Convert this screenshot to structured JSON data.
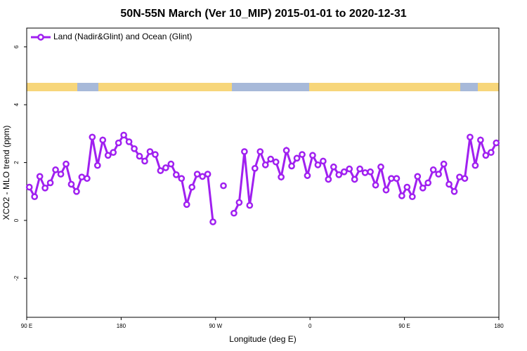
{
  "chart_data": {
    "type": "line",
    "title": "50N-55N March (Ver 10_MIP)   2015-01-01 to 2020-12-31",
    "x_label": "Longitude (deg E)",
    "y_label": "XCO2 - MLO trend (ppm)",
    "legend_position": "top-left",
    "xlim": [
      90,
      540
    ],
    "xticks": [
      {
        "value": 90,
        "label": "90 E"
      },
      {
        "value": 180,
        "label": "180"
      },
      {
        "value": 270,
        "label": "90 W"
      },
      {
        "value": 360,
        "label": "0"
      },
      {
        "value": 450,
        "label": "90 E"
      },
      {
        "value": 540,
        "label": "180"
      }
    ],
    "ylim": [
      -3.35,
      6.65
    ],
    "yticks": [
      -2,
      0,
      2,
      4,
      6
    ],
    "x": [
      92.5,
      97.5,
      102.5,
      107.5,
      112.5,
      117.5,
      122.5,
      127.5,
      132.5,
      137.5,
      142.5,
      147.5,
      152.5,
      157.5,
      162.5,
      167.5,
      172.5,
      177.5,
      182.5,
      187.5,
      192.5,
      197.5,
      202.5,
      207.5,
      212.5,
      217.5,
      222.5,
      227.5,
      232.5,
      237.5,
      242.5,
      247.5,
      252.5,
      257.5,
      262.5,
      267.5,
      272.5,
      277.5,
      282.5,
      287.5,
      292.5,
      297.5,
      302.5,
      307.5,
      312.5,
      317.5,
      322.5,
      327.5,
      332.5,
      337.5,
      342.5,
      347.5,
      352.5,
      357.5,
      362.5,
      367.5,
      372.5,
      377.5,
      382.5,
      387.5,
      392.5,
      397.5,
      402.5,
      407.5,
      412.5,
      417.5,
      422.5,
      427.5,
      432.5,
      437.5,
      442.5,
      447.5,
      452.5,
      457.5,
      462.5,
      467.5,
      472.5,
      477.5,
      482.5,
      487.5,
      492.5,
      497.5,
      502.5,
      507.5,
      512.5,
      517.5,
      522.5,
      527.5,
      532.5,
      537.5
    ],
    "series": [
      {
        "name": "Land (Nadir&Glint) and Ocean (Glint)",
        "color": "#a020f0",
        "values": [
          1.15,
          0.82,
          1.52,
          1.12,
          1.3,
          1.75,
          1.6,
          1.95,
          1.25,
          1.0,
          1.5,
          1.45,
          2.88,
          1.9,
          2.78,
          2.25,
          2.35,
          2.68,
          2.95,
          2.72,
          2.48,
          2.22,
          2.05,
          2.38,
          2.28,
          1.72,
          1.82,
          1.95,
          1.58,
          1.45,
          0.55,
          1.15,
          1.6,
          1.52,
          1.6,
          -0.05,
          null,
          1.2,
          null,
          0.25,
          0.62,
          2.38,
          0.52,
          1.8,
          2.38,
          1.92,
          2.12,
          2.02,
          1.5,
          2.42,
          1.88,
          2.15,
          2.28,
          1.55,
          2.25,
          1.92,
          2.05,
          1.42,
          1.85,
          1.58,
          1.68,
          1.78,
          1.42,
          1.78,
          1.65,
          1.68,
          1.22,
          1.85,
          1.05,
          1.45,
          1.45,
          0.85,
          1.15,
          0.82,
          1.52,
          1.12,
          1.3,
          1.75,
          1.6,
          1.95,
          1.25,
          1.0,
          1.5,
          1.45,
          2.88,
          1.9,
          2.78,
          2.25,
          2.35,
          2.68
        ]
      }
    ]
  }
}
